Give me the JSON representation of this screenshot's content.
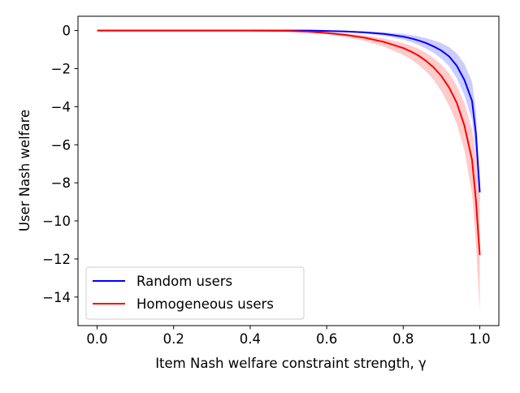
{
  "chart_data": {
    "type": "line",
    "title": "",
    "xlabel": "Item Nash welfare constraint strength, γ",
    "ylabel": "User Nash welfare",
    "xlim": [
      -0.05,
      1.05
    ],
    "ylim": [
      -15.5,
      0.75
    ],
    "xticks": [
      0.0,
      0.2,
      0.4,
      0.6,
      0.8,
      1.0
    ],
    "xtick_labels": [
      "0.0",
      "0.2",
      "0.4",
      "0.6",
      "0.8",
      "1.0"
    ],
    "yticks": [
      0,
      -2,
      -4,
      -6,
      -8,
      -10,
      -12,
      -14
    ],
    "ytick_labels": [
      "0",
      "−2",
      "−4",
      "−6",
      "−8",
      "−10",
      "−12",
      "−14"
    ],
    "grid": false,
    "legend_position": "lower-left",
    "series": [
      {
        "name": "Random users",
        "color": "#0000ff",
        "band_color": "#0000ff",
        "x": [
          0.0,
          0.1,
          0.2,
          0.3,
          0.4,
          0.5,
          0.55,
          0.6,
          0.65,
          0.7,
          0.75,
          0.8,
          0.82,
          0.84,
          0.86,
          0.88,
          0.9,
          0.92,
          0.94,
          0.96,
          0.98,
          0.99,
          1.0
        ],
        "y": [
          0.0,
          0.0,
          0.0,
          0.0,
          0.0,
          0.0,
          0.0,
          -0.02,
          -0.05,
          -0.1,
          -0.18,
          -0.32,
          -0.41,
          -0.52,
          -0.66,
          -0.84,
          -1.06,
          -1.36,
          -1.85,
          -2.6,
          -3.7,
          -5.4,
          -8.5
        ],
        "upper": [
          0.0,
          0.0,
          0.0,
          0.0,
          0.0,
          0.0,
          0.0,
          0.0,
          -0.02,
          -0.05,
          -0.1,
          -0.18,
          -0.24,
          -0.31,
          -0.4,
          -0.52,
          -0.66,
          -0.87,
          -1.2,
          -1.75,
          -2.7,
          -4.2,
          -8.0
        ],
        "lower": [
          0.0,
          0.0,
          0.0,
          0.0,
          0.0,
          0.0,
          -0.01,
          -0.04,
          -0.09,
          -0.16,
          -0.28,
          -0.48,
          -0.6,
          -0.76,
          -0.95,
          -1.18,
          -1.48,
          -1.88,
          -2.5,
          -3.4,
          -4.7,
          -6.6,
          -9.0
        ]
      },
      {
        "name": "Homogeneous users",
        "color": "#ff0000",
        "band_color": "#ff0000",
        "x": [
          0.0,
          0.1,
          0.2,
          0.3,
          0.4,
          0.5,
          0.55,
          0.6,
          0.65,
          0.7,
          0.75,
          0.8,
          0.82,
          0.84,
          0.86,
          0.88,
          0.9,
          0.92,
          0.94,
          0.96,
          0.98,
          0.99,
          1.0
        ],
        "y": [
          0.0,
          0.0,
          0.0,
          0.0,
          0.0,
          -0.02,
          -0.06,
          -0.13,
          -0.23,
          -0.38,
          -0.6,
          -0.92,
          -1.1,
          -1.32,
          -1.6,
          -1.94,
          -2.4,
          -3.0,
          -3.8,
          -5.0,
          -6.8,
          -8.9,
          -11.8
        ],
        "upper": [
          0.0,
          0.0,
          0.0,
          0.0,
          0.0,
          -0.01,
          -0.03,
          -0.08,
          -0.15,
          -0.26,
          -0.42,
          -0.66,
          -0.8,
          -0.96,
          -1.18,
          -1.45,
          -1.8,
          -2.25,
          -2.9,
          -3.8,
          -5.2,
          -6.6,
          -8.8
        ],
        "lower": [
          0.0,
          0.0,
          0.0,
          0.0,
          -0.01,
          -0.04,
          -0.1,
          -0.2,
          -0.34,
          -0.55,
          -0.85,
          -1.28,
          -1.52,
          -1.8,
          -2.15,
          -2.6,
          -3.2,
          -3.95,
          -4.9,
          -6.3,
          -8.6,
          -11.2,
          -14.8
        ]
      }
    ]
  }
}
